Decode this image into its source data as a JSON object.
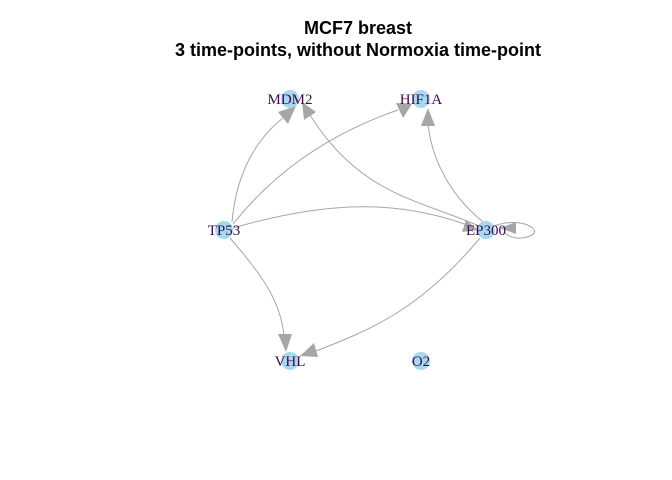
{
  "title": {
    "line1": "MCF7 breast",
    "line2": "3 time-points, without Normoxia time-point"
  },
  "nodes": [
    {
      "id": "MDM2",
      "label": "MDM2"
    },
    {
      "id": "HIF1A",
      "label": "HIF1A"
    },
    {
      "id": "TP53",
      "label": "TP53"
    },
    {
      "id": "EP300",
      "label": "EP300"
    },
    {
      "id": "VHL",
      "label": "VHL"
    },
    {
      "id": "O2",
      "label": "O2"
    }
  ],
  "edges": [
    {
      "from": "TP53",
      "to": "MDM2"
    },
    {
      "from": "TP53",
      "to": "HIF1A"
    },
    {
      "from": "TP53",
      "to": "EP300"
    },
    {
      "from": "TP53",
      "to": "VHL"
    },
    {
      "from": "EP300",
      "to": "MDM2"
    },
    {
      "from": "EP300",
      "to": "HIF1A"
    },
    {
      "from": "EP300",
      "to": "VHL"
    },
    {
      "from": "EP300",
      "to": "EP300"
    }
  ],
  "colors": {
    "node_fill": "#a8d8ee",
    "edge": "#a6a6a6",
    "label": "#3d0a4f"
  }
}
